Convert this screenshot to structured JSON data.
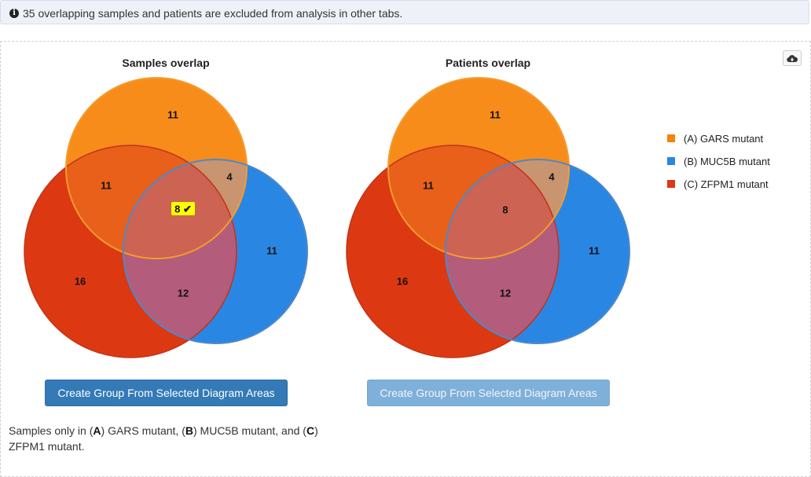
{
  "info_bar": {
    "icon": "info-circle-icon",
    "text": "35 overlapping samples and patients are excluded from analysis in other tabs."
  },
  "download_button": {
    "icon": "cloud-download-icon"
  },
  "samples_chart": {
    "title": "Samples overlap",
    "regions": {
      "a_only": "11",
      "b_only": "11",
      "c_only": "16",
      "a_c": "11",
      "a_b": "4",
      "b_c": "12",
      "a_b_c": "8"
    },
    "selected_region_label": "8 ✔",
    "selected_region": "a_b_c",
    "button_label": "Create Group From Selected Diagram Areas",
    "button_state": "enabled"
  },
  "patients_chart": {
    "title": "Patients overlap",
    "regions": {
      "a_only": "11",
      "b_only": "11",
      "c_only": "16",
      "a_c": "11",
      "a_b": "4",
      "b_c": "12",
      "a_b_c": "8"
    },
    "button_label": "Create Group From Selected Diagram Areas",
    "button_state": "disabled"
  },
  "legend": [
    {
      "key": "(A)",
      "label": " GARS mutant",
      "color": "#f68208"
    },
    {
      "key": "(B)",
      "label": " MUC5B mutant",
      "color": "#2a86e3"
    },
    {
      "key": "(C)",
      "label": " ZFPM1 mutant",
      "color": "#dc3912"
    }
  ],
  "colors": {
    "set_a": "#f68208",
    "set_b": "#2a86e3",
    "set_c": "#dc3912",
    "highlight": "#ffff00",
    "button_primary": "#337ab7"
  },
  "description": {
    "prefix": "Samples only in (",
    "a_key": "A",
    "a_name": ") GARS mutant, (",
    "b_key": "B",
    "b_name": ") MUC5B mutant, and (",
    "c_key": "C",
    "c_name": ") ZFPM1 mutant."
  }
}
